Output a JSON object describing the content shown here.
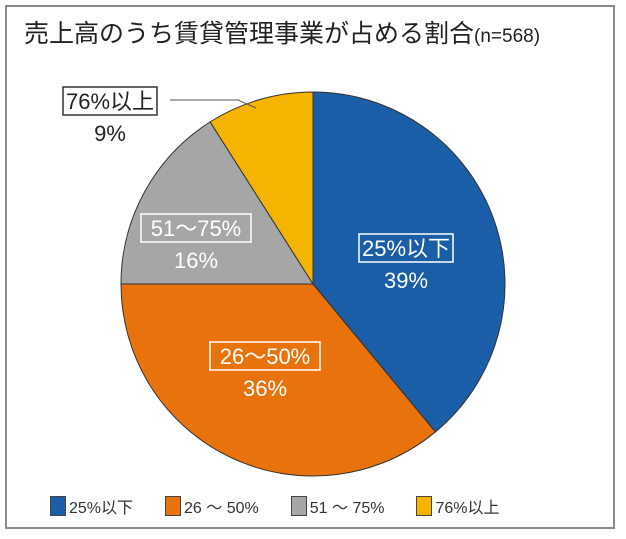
{
  "chart_data": {
    "type": "pie",
    "title": "売上高のうち賃貸管理事業が占める割合",
    "subtitle": "(n=568)",
    "categories": [
      "25%以下",
      "26～50%",
      "51～75%",
      "76%以上"
    ],
    "legend_labels": [
      "25%以下",
      "26 ～ 50%",
      "51 ～ 75%",
      "76%以上"
    ],
    "values": [
      39,
      36,
      16,
      9
    ],
    "value_labels": [
      "39%",
      "36%",
      "16%",
      "9%"
    ],
    "colors": [
      "#1a5ea8",
      "#e8720c",
      "#a6a6a6",
      "#f5b400"
    ],
    "start": "top",
    "direction": "clockwise",
    "legend_position": "bottom"
  }
}
